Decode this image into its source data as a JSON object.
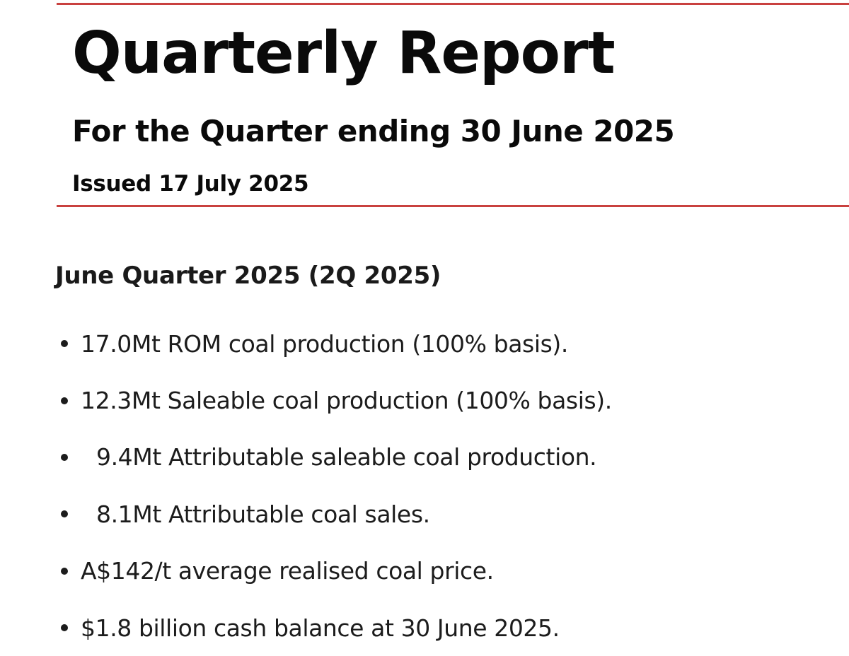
{
  "header": {
    "title": "Quarterly Report",
    "subtitle": "For the Quarter ending 30 June 2025",
    "issued": "Issued 17 July 2025",
    "accent_color": "#c9413f"
  },
  "section": {
    "heading": "June Quarter 2025 (2Q 2025)",
    "bullets": [
      "17.0Mt ROM coal production (100% basis).",
      "12.3Mt Saleable coal production (100% basis).",
      "9.4Mt Attributable saleable coal production.",
      "8.1Mt Attributable coal sales.",
      "A$142/t average realised coal price.",
      "$1.8 billion cash balance at 30 June 2025."
    ]
  }
}
